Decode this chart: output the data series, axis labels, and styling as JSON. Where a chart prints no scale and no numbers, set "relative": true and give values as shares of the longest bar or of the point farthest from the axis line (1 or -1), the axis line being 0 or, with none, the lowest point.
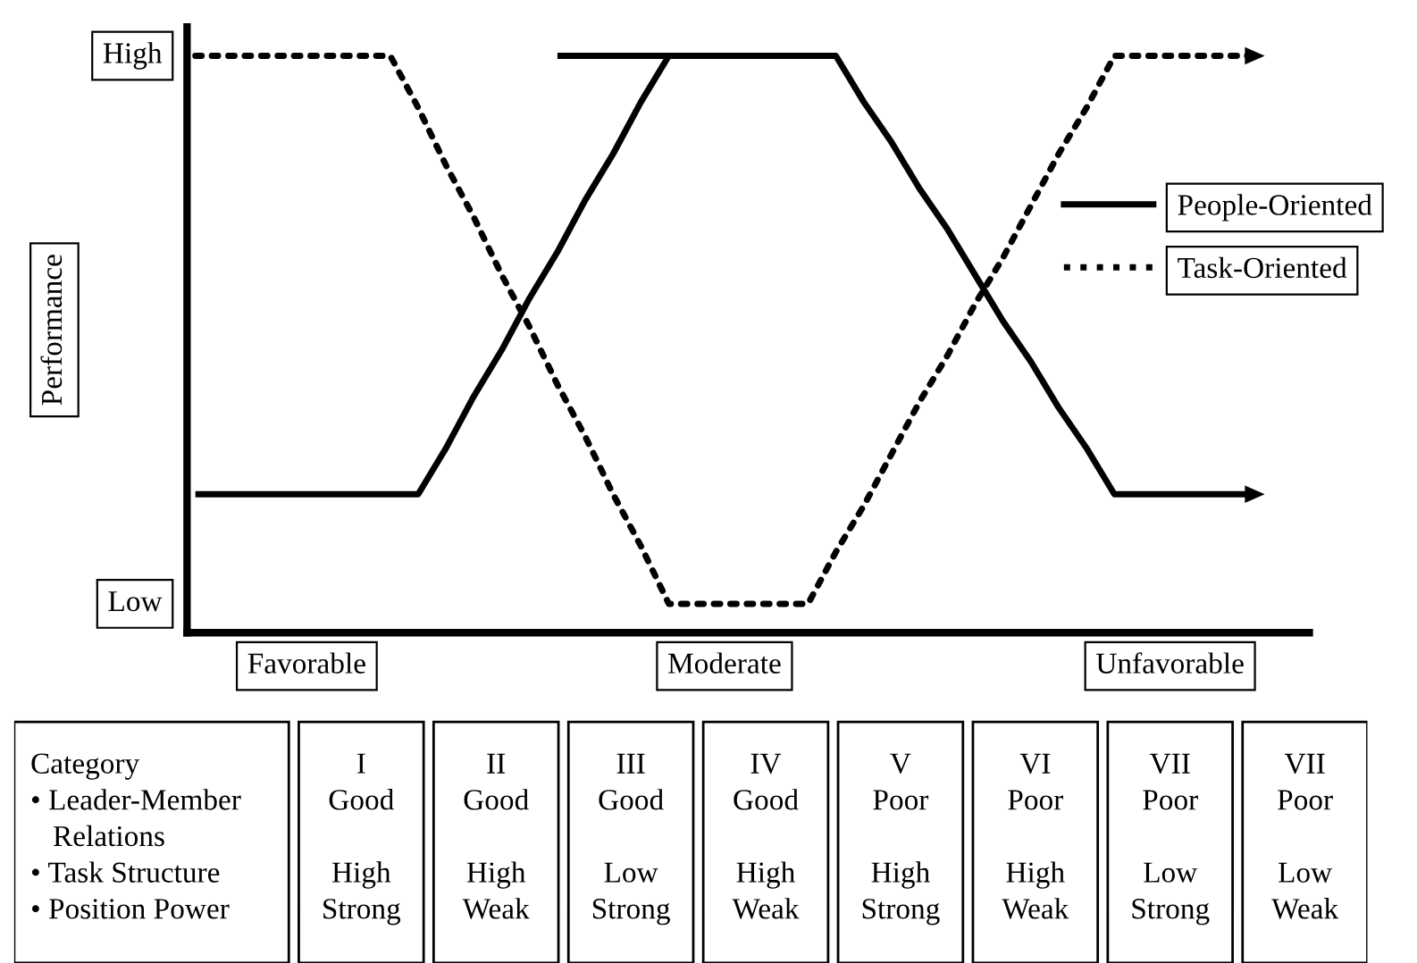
{
  "chart_data": [
    {
      "type": "line",
      "ylabel": "Performance",
      "relative": true,
      "categories": [
        null,
        null,
        null,
        null,
        "Favorable",
        null,
        null,
        null,
        null,
        null,
        null,
        null,
        null,
        null,
        null,
        null,
        null,
        null,
        null,
        "Moderate",
        null,
        null,
        null,
        null,
        null,
        null,
        null,
        null,
        null,
        null,
        null,
        null,
        null,
        null,
        null,
        "Unfavorable",
        null,
        null,
        null,
        null,
        null
      ],
      "annotations": [
        "High",
        "Low"
      ],
      "series": [
        {
          "name": "People-Oriented",
          "color": "#000000",
          "line_style": "solid",
          "values": [
            0.24,
            0.24,
            0.24,
            0.24,
            0.24,
            0.24,
            0.24,
            0.24,
            0.24,
            0.32,
            0.41,
            0.49,
            0.58,
            0.66,
            0.75,
            0.83,
            0.92,
            1.0,
            1.0,
            1.0,
            1.0,
            1.0,
            1.0,
            1.0,
            0.92,
            0.85,
            0.77,
            0.7,
            0.62,
            0.54,
            0.47,
            0.39,
            0.32,
            0.24,
            0.24,
            0.24,
            0.24,
            0.24,
            0.24,
            null,
            null
          ]
        },
        {
          "name": "Task-Oriented",
          "color": "#000000",
          "line_style": "dotted",
          "values": [
            1.0,
            1.0,
            1.0,
            1.0,
            1.0,
            1.0,
            1.0,
            1.0,
            0.91,
            0.81,
            0.72,
            0.62,
            0.53,
            0.43,
            0.34,
            0.24,
            0.15,
            0.05,
            0.05,
            0.05,
            0.05,
            0.05,
            0.05,
            0.14,
            0.22,
            0.31,
            0.4,
            0.48,
            0.57,
            0.65,
            0.74,
            0.83,
            0.91,
            1.0,
            1.0,
            1.0,
            1.0,
            1.0,
            1.0,
            null,
            null
          ]
        },
        {
          "color": "#000000",
          "line_style": "solid",
          "values": [
            null,
            null,
            null,
            null,
            null,
            null,
            null,
            null,
            null,
            null,
            null,
            null,
            null,
            1.0,
            1.0,
            1.0,
            1.0,
            1.0,
            null,
            null,
            null,
            null,
            null,
            null,
            null,
            null,
            null,
            null,
            null,
            null,
            null,
            null,
            null,
            null,
            null,
            null,
            null,
            null,
            null,
            null,
            null
          ]
        }
      ],
      "legend": "right",
      "marker": "none"
    },
    {
      "type": "other",
      "annotations": [
        "Category\n• Leader-Member\n   Relations\n• Task Structure\n• Position Power",
        "I\nGood\n\nHigh\nStrong",
        "II\nGood\n\nHigh\nWeak",
        "III\nGood\n\nLow\nStrong",
        "IV\nGood\n\nHigh\nWeak",
        "V\nPoor\n\nHigh\nStrong",
        "VI\nPoor\n\nHigh\nWeak",
        "VII\nPoor\n\nLow\nStrong",
        "VII\nPoor\n\nLow\nWeak"
      ]
    }
  ]
}
